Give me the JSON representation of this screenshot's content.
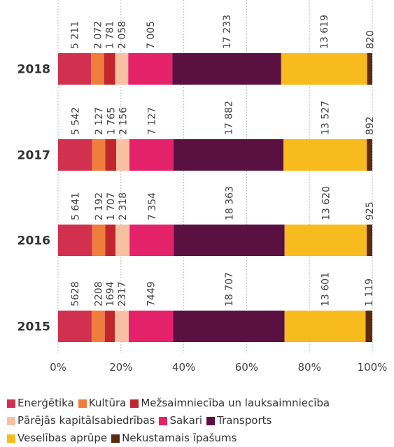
{
  "chart_data": {
    "type": "stacked_bar_100",
    "orientation": "horizontal",
    "categories": [
      "2018",
      "2017",
      "2016",
      "2015"
    ],
    "series": [
      {
        "name": "Enerģētika",
        "color": "#d1304f",
        "values": [
          5211,
          5542,
          5641,
          5628
        ],
        "value_labels": [
          "5 211",
          "5 542",
          "5 641",
          "5628"
        ]
      },
      {
        "name": "Kultūra",
        "color": "#ef7d3c",
        "values": [
          2072,
          2127,
          2192,
          2208
        ],
        "value_labels": [
          "2 072",
          "2 127",
          "2 192",
          "2208"
        ]
      },
      {
        "name": "Mežsaimniecība un lauksaimniecība",
        "color": "#c1262e",
        "values": [
          1781,
          1765,
          1707,
          1694
        ],
        "value_labels": [
          "1 781",
          "1 765",
          "1 707",
          "1694"
        ]
      },
      {
        "name": "Pārējās kapitālsabiedrības",
        "color": "#f8c0a2",
        "values": [
          2058,
          2156,
          2318,
          2317
        ],
        "value_labels": [
          "2 058",
          "2 156",
          "2 318",
          "2317"
        ]
      },
      {
        "name": "Sakari",
        "color": "#e3226a",
        "values": [
          7005,
          7127,
          7354,
          7449
        ],
        "value_labels": [
          "7 005",
          "7 127",
          "7 354",
          "7449"
        ]
      },
      {
        "name": "Transports",
        "color": "#5a1141",
        "values": [
          17233,
          17882,
          18363,
          18707
        ],
        "value_labels": [
          "17 233",
          "17 882",
          "18 363",
          "18 707"
        ]
      },
      {
        "name": "Veselības aprūpe",
        "color": "#f8bb1d",
        "values": [
          13619,
          13527,
          13620,
          13601
        ],
        "value_labels": [
          "13 619",
          "13 527",
          "13 620",
          "13 601"
        ]
      },
      {
        "name": "Nekustamais īpašums",
        "color": "#5b2a0f",
        "values": [
          820,
          892,
          925,
          1119
        ],
        "value_labels": [
          "820",
          "892",
          "925",
          "1 119"
        ]
      }
    ],
    "xlim": [
      0,
      100
    ],
    "xticks": [
      {
        "value": 0,
        "label": "0%"
      },
      {
        "value": 20,
        "label": "20%"
      },
      {
        "value": 40,
        "label": "40%"
      },
      {
        "value": 60,
        "label": "60%"
      },
      {
        "value": 80,
        "label": "80%"
      },
      {
        "value": 100,
        "label": "100%"
      }
    ],
    "grid": true
  }
}
